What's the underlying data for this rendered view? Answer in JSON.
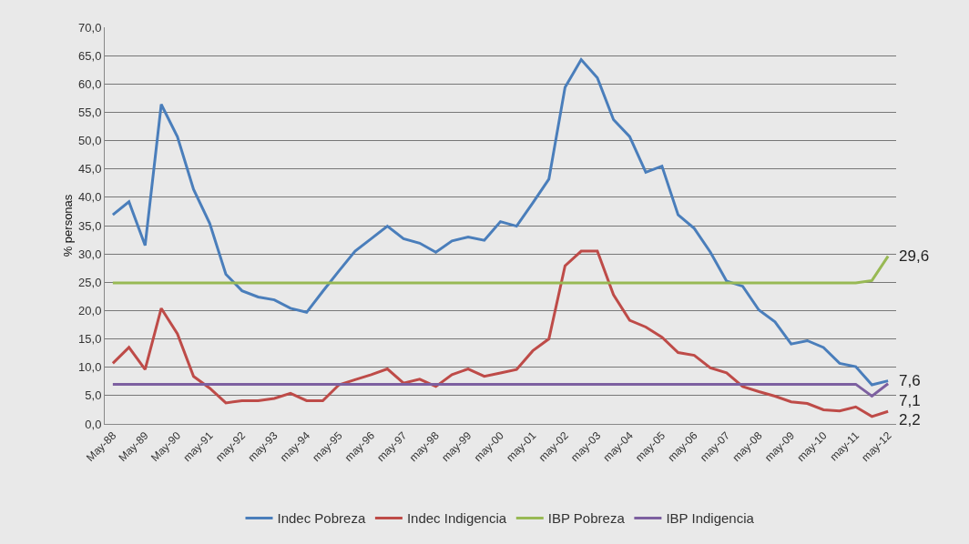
{
  "chart_data": {
    "type": "line",
    "ylabel": "% personas",
    "categories": [
      "May-88",
      null,
      "May-89",
      null,
      "May-90",
      null,
      "may-91",
      null,
      "may-92",
      null,
      "may-93",
      null,
      "may-94",
      null,
      "may-95",
      null,
      "may-96",
      null,
      "may-97",
      null,
      "may-98",
      null,
      "may-99",
      null,
      "may-00",
      null,
      "may-01",
      null,
      "may-02",
      null,
      "may-03",
      null,
      "may-04",
      null,
      "may-05",
      null,
      "may-06",
      null,
      "may-07",
      null,
      "may-08",
      null,
      "may-09",
      null,
      "may-10",
      null,
      "may-11",
      null,
      "may-12"
    ],
    "series": [
      {
        "name": "Indec Pobreza",
        "color": "#4a7ebb",
        "values": [
          36.9,
          39.2,
          31.5,
          56.4,
          50.7,
          41.4,
          35.4,
          26.4,
          23.5,
          22.4,
          21.9,
          20.4,
          19.7,
          23.4,
          27.0,
          30.5,
          32.7,
          34.9,
          32.7,
          31.9,
          30.3,
          32.3,
          33.0,
          32.4,
          35.7,
          34.9,
          39.0,
          43.2,
          59.4,
          64.3,
          61.1,
          53.7,
          50.7,
          44.4,
          45.5,
          36.9,
          34.5,
          30.3,
          25.2,
          24.3,
          20.1,
          18.0,
          14.1,
          14.7,
          13.5,
          10.7,
          10.1,
          6.9,
          7.6
        ]
      },
      {
        "name": "Indec Indigencia",
        "color": "#be4b48",
        "values": [
          10.7,
          13.5,
          9.6,
          20.4,
          15.9,
          8.4,
          6.3,
          3.7,
          4.1,
          4.1,
          4.5,
          5.4,
          4.1,
          4.1,
          6.9,
          7.8,
          8.7,
          9.7,
          7.2,
          7.9,
          6.6,
          8.7,
          9.7,
          8.4,
          9.0,
          9.6,
          12.9,
          15.0,
          27.9,
          30.5,
          30.5,
          22.8,
          18.3,
          17.1,
          15.3,
          12.6,
          12.1,
          9.9,
          9.0,
          6.6,
          5.7,
          4.9,
          3.9,
          3.6,
          2.5,
          2.3,
          3.0,
          1.3,
          2.2
        ]
      },
      {
        "name": "IBP Pobreza",
        "color": "#98b954",
        "values": [
          24.9,
          24.9,
          24.9,
          24.9,
          24.9,
          24.9,
          24.9,
          24.9,
          24.9,
          24.9,
          24.9,
          24.9,
          24.9,
          24.9,
          24.9,
          24.9,
          24.9,
          24.9,
          24.9,
          24.9,
          24.9,
          24.9,
          24.9,
          24.9,
          24.9,
          24.9,
          24.9,
          24.9,
          24.9,
          24.9,
          24.9,
          24.9,
          24.9,
          24.9,
          24.9,
          24.9,
          24.9,
          24.9,
          24.9,
          24.9,
          24.9,
          24.9,
          24.9,
          24.9,
          24.9,
          24.9,
          24.9,
          25.3,
          29.6
        ]
      },
      {
        "name": "IBP Indigencia",
        "color": "#7d60a0",
        "values": [
          7.0,
          7.0,
          7.0,
          7.0,
          7.0,
          7.0,
          7.0,
          7.0,
          7.0,
          7.0,
          7.0,
          7.0,
          7.0,
          7.0,
          7.0,
          7.0,
          7.0,
          7.0,
          7.0,
          7.0,
          7.0,
          7.0,
          7.0,
          7.0,
          7.0,
          7.0,
          7.0,
          7.0,
          7.0,
          7.0,
          7.0,
          7.0,
          7.0,
          7.0,
          7.0,
          7.0,
          7.0,
          7.0,
          7.0,
          7.0,
          7.0,
          7.0,
          7.0,
          7.0,
          7.0,
          7.0,
          7.0,
          4.9,
          7.1
        ]
      }
    ],
    "ylim": [
      0,
      70
    ],
    "yticks": [
      {
        "value": 0,
        "label": "0,0"
      },
      {
        "value": 5,
        "label": "5,0"
      },
      {
        "value": 10,
        "label": "10,0"
      },
      {
        "value": 15,
        "label": "15,0"
      },
      {
        "value": 20,
        "label": "20,0"
      },
      {
        "value": 25,
        "label": "25,0"
      },
      {
        "value": 30,
        "label": "30,0"
      },
      {
        "value": 35,
        "label": "35,0"
      },
      {
        "value": 40,
        "label": "40,0"
      },
      {
        "value": 45,
        "label": "45,0"
      },
      {
        "value": 50,
        "label": "50,0"
      },
      {
        "value": 55,
        "label": "55,0"
      },
      {
        "value": 60,
        "label": "60,0"
      },
      {
        "value": 65,
        "label": "65,0"
      },
      {
        "value": 70,
        "label": "70,0"
      }
    ],
    "annotations": [
      {
        "text": "29,6",
        "x": "may-12",
        "y": 29.6
      },
      {
        "text": "7,6",
        "x": "may-12",
        "y": 7.6
      },
      {
        "text": "7,1",
        "x": "may-12",
        "y": 7.1
      },
      {
        "text": "2,2",
        "x": "may-12",
        "y": 2.2
      }
    ],
    "grid": "y",
    "legend": "bottom",
    "marker": "none",
    "line_style": "solid"
  }
}
